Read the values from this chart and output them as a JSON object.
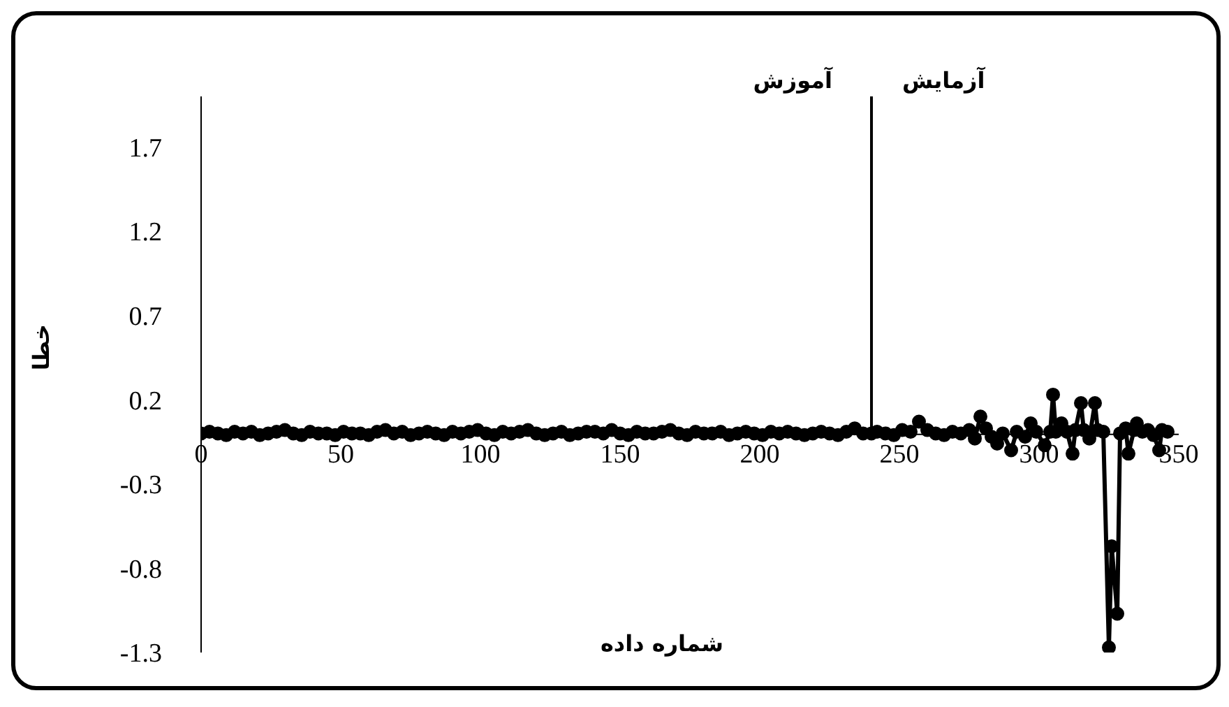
{
  "chart_data": {
    "type": "line",
    "xlabel": "شماره داده",
    "ylabel": "خطا",
    "annotations": [
      "آموزش",
      "آزمایش"
    ],
    "ref_lines": [
      {
        "axis": "x",
        "value": 240,
        "color": "#000000"
      }
    ],
    "x": [
      0,
      3,
      6,
      9,
      12,
      15,
      18,
      21,
      24,
      27,
      30,
      33,
      36,
      39,
      42,
      45,
      48,
      51,
      54,
      57,
      60,
      63,
      66,
      69,
      72,
      75,
      78,
      81,
      84,
      87,
      90,
      93,
      96,
      99,
      102,
      105,
      108,
      111,
      114,
      117,
      120,
      123,
      126,
      129,
      132,
      135,
      138,
      141,
      144,
      147,
      150,
      153,
      156,
      159,
      162,
      165,
      168,
      171,
      174,
      177,
      180,
      183,
      186,
      189,
      192,
      195,
      198,
      201,
      204,
      207,
      210,
      213,
      216,
      219,
      222,
      225,
      228,
      231,
      234,
      237,
      240,
      242,
      245,
      248,
      251,
      254,
      257,
      260,
      263,
      266,
      269,
      272,
      275,
      277,
      279,
      281,
      283,
      285,
      287,
      290,
      292,
      295,
      297,
      299,
      302,
      304,
      305,
      306,
      308,
      310,
      312,
      313,
      315,
      316,
      318,
      320,
      321,
      323,
      325,
      326,
      328,
      329,
      331,
      332,
      334,
      335,
      337,
      339,
      341,
      343,
      344,
      346
    ],
    "series": [
      {
        "color": "#000000",
        "values": [
          0,
          0.01,
          0,
          -0.01,
          0.01,
          0,
          0.01,
          -0.01,
          0,
          0.01,
          0.02,
          0,
          -0.01,
          0.01,
          0,
          0,
          -0.01,
          0.01,
          0,
          0,
          -0.01,
          0.01,
          0.02,
          0,
          0.01,
          -0.01,
          0,
          0.01,
          0,
          -0.01,
          0.01,
          0,
          0.01,
          0.02,
          0,
          -0.01,
          0.01,
          0,
          0.01,
          0.02,
          0,
          -0.01,
          0,
          0.01,
          -0.01,
          0,
          0.01,
          0.01,
          0,
          0.02,
          0,
          -0.01,
          0.01,
          0,
          0,
          0.01,
          0.02,
          0,
          -0.01,
          0.01,
          0,
          0,
          0.01,
          -0.01,
          0,
          0.01,
          0,
          -0.01,
          0.01,
          0,
          0.01,
          0,
          -0.01,
          0,
          0.01,
          0,
          -0.01,
          0.01,
          0.03,
          0,
          0,
          0.01,
          0,
          -0.01,
          0.02,
          0.01,
          0.07,
          0.02,
          0,
          -0.01,
          0.01,
          0,
          0.02,
          -0.03,
          0.1,
          0.03,
          -0.02,
          -0.06,
          0,
          -0.1,
          0.01,
          -0.02,
          0.06,
          0.01,
          -0.07,
          0.01,
          0.23,
          0.01,
          0.06,
          0.01,
          -0.12,
          0.02,
          0.18,
          0.02,
          -0.03,
          0.18,
          0.02,
          0.01,
          -1.27,
          -0.67,
          -1.07,
          0,
          0.03,
          -0.12,
          0.02,
          0.06,
          0.01,
          0.02,
          -0.01,
          -0.1,
          0.02,
          0.01
        ]
      }
    ],
    "xlim": [
      0,
      350
    ],
    "xticks": [
      0,
      50,
      100,
      150,
      200,
      250,
      300,
      350
    ],
    "ylim": [
      -1.3,
      2.0
    ],
    "yticks": [
      -1.3,
      -0.8,
      -0.3,
      0.2,
      0.7,
      1.2,
      1.7
    ],
    "grid": false,
    "legend": false,
    "marker": "circle",
    "line_style": "solid"
  }
}
